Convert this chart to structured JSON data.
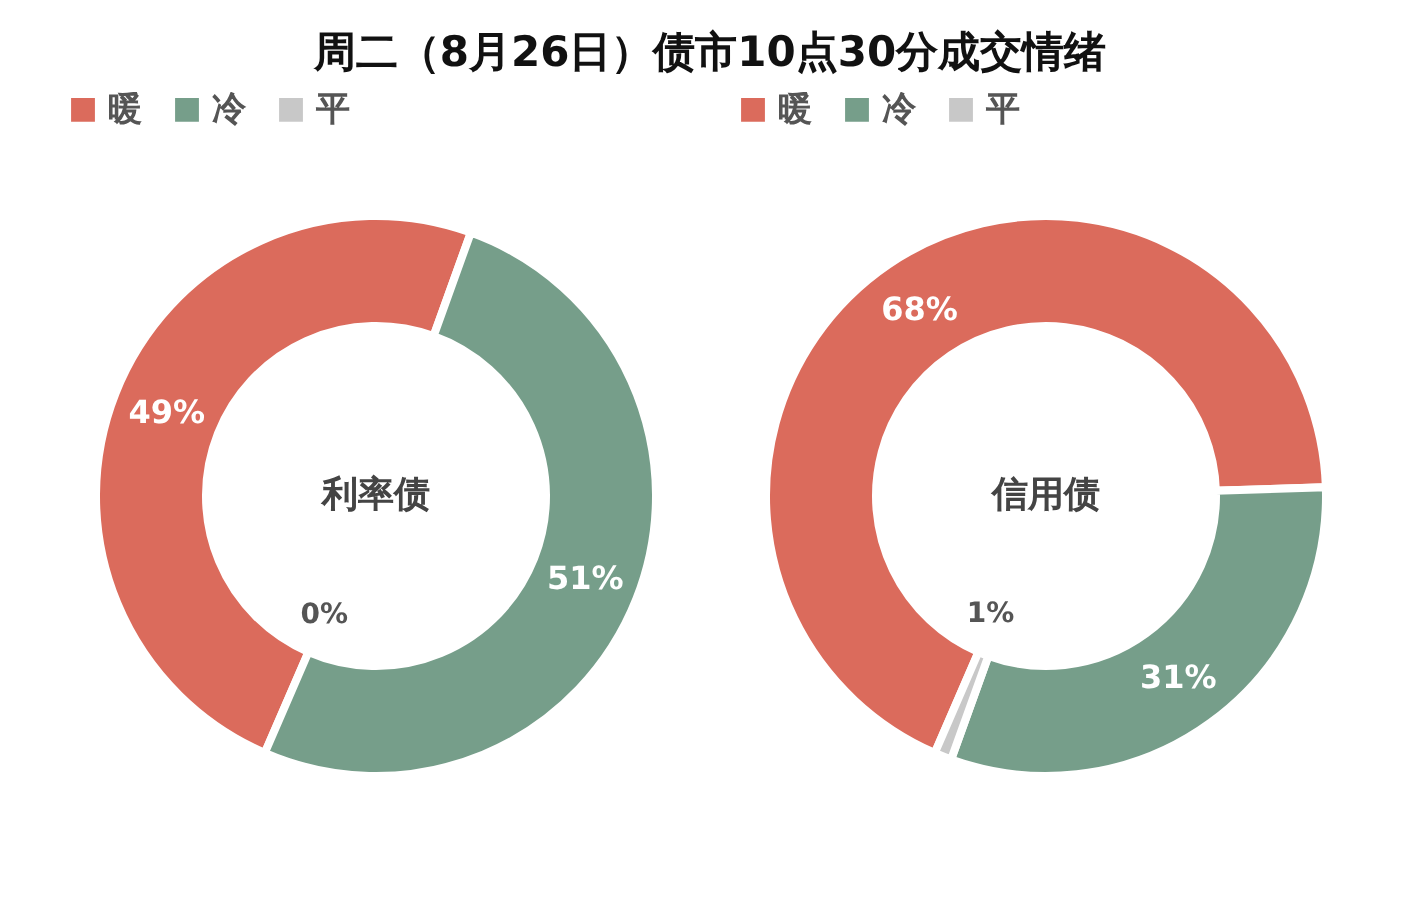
{
  "chart_data": [
    {
      "type": "donut",
      "title": "周二（8月26日）债市10点30分成交情绪",
      "categories": [
        "暖",
        "冷",
        "平"
      ],
      "values": [
        49,
        51,
        0
      ],
      "colors": [
        "#db6b5c",
        "#769e8a",
        "#c8c8c8"
      ],
      "value_labels": [
        "49%",
        "51%",
        "0%"
      ],
      "legend": "top",
      "annotations": [
        "利率债"
      ]
    },
    {
      "type": "donut",
      "categories": [
        "暖",
        "冷",
        "平"
      ],
      "values": [
        68,
        31,
        1
      ],
      "colors": [
        "#db6b5c",
        "#769e8a",
        "#c8c8c8"
      ],
      "value_labels": [
        "68%",
        "31%",
        "1%"
      ],
      "legend": "top",
      "annotations": [
        "信用债"
      ]
    }
  ]
}
